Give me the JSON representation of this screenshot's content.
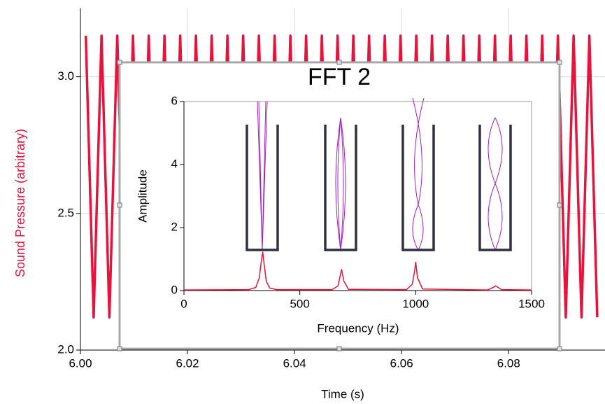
{
  "chart_data": [
    {
      "type": "line",
      "ylabel": "Sound Pressure (arbitrary)",
      "xlabel": "Time (s)",
      "color": "#e8123c",
      "x": [
        6.001,
        6.00247,
        6.00394,
        6.00541,
        6.00688,
        6.00835,
        6.00982,
        6.01129,
        6.01276,
        6.01423,
        6.0157,
        6.01717,
        6.01864,
        6.02011,
        6.02158,
        6.02305,
        6.02452,
        6.02599,
        6.02746,
        6.02893,
        6.0304,
        6.03187,
        6.03334,
        6.03481,
        6.03628,
        6.03775,
        6.03922,
        6.04069,
        6.04216,
        6.04363,
        6.0451,
        6.04657,
        6.04804,
        6.04951,
        6.05098,
        6.05245,
        6.05392,
        6.05539,
        6.05686,
        6.05833,
        6.0598,
        6.06127,
        6.06274,
        6.06421,
        6.06568,
        6.06715,
        6.06862,
        6.07009,
        6.07156,
        6.07303,
        6.0745,
        6.07597,
        6.07744,
        6.07891,
        6.08038,
        6.08185,
        6.08332,
        6.08479,
        6.08626,
        6.08773,
        6.0892,
        6.09067,
        6.09214,
        6.09361,
        6.09508,
        6.09655
      ],
      "values": [
        3.15,
        2.12,
        3.15,
        2.12,
        3.15,
        2.12,
        3.15,
        2.12,
        3.15,
        2.12,
        3.15,
        2.12,
        3.15,
        2.12,
        3.15,
        2.12,
        3.15,
        2.12,
        3.15,
        2.12,
        3.15,
        2.12,
        3.15,
        2.12,
        3.15,
        2.12,
        3.15,
        2.12,
        3.15,
        2.12,
        3.15,
        2.12,
        3.15,
        2.12,
        3.15,
        2.12,
        3.15,
        2.12,
        3.15,
        2.12,
        3.15,
        2.12,
        3.15,
        2.12,
        3.15,
        2.12,
        3.15,
        2.12,
        3.15,
        2.12,
        3.15,
        2.12,
        3.15,
        2.12,
        3.15,
        2.12,
        3.15,
        2.12,
        3.15,
        2.12,
        3.15,
        2.12,
        3.15,
        2.12,
        3.15,
        2.12
      ],
      "xlim": [
        6.0,
        6.098
      ],
      "ylim": [
        2.0,
        3.25
      ],
      "xticks": [
        {
          "value": 6.0,
          "label": "6.00"
        },
        6.02,
        6.04,
        6.06,
        6.08
      ],
      "yticks": [
        {
          "value": 2.0,
          "label": "2.0"
        },
        2.5,
        {
          "value": 3.0,
          "label": "3.0"
        }
      ],
      "grid": true
    },
    {
      "type": "line",
      "title": "FFT 2",
      "xlabel": "Frequency (Hz)",
      "ylabel": "Amplitude",
      "color": "#e8123c",
      "x": [
        0,
        280,
        310,
        325,
        335,
        340,
        345,
        355,
        370,
        400,
        640,
        665,
        675,
        680,
        690,
        710,
        960,
        985,
        995,
        1000,
        1008,
        1030,
        1310,
        1335,
        1345,
        1370,
        1500
      ],
      "values": [
        0.02,
        0.03,
        0.1,
        0.4,
        1.0,
        1.22,
        0.9,
        0.3,
        0.08,
        0.03,
        0.03,
        0.15,
        0.5,
        0.67,
        0.3,
        0.04,
        0.03,
        0.2,
        0.6,
        0.9,
        0.4,
        0.05,
        0.02,
        0.1,
        0.15,
        0.03,
        0.02
      ],
      "xlim": [
        0,
        1500
      ],
      "ylim": [
        0,
        6
      ],
      "xticks": [
        0,
        500,
        1000,
        1500
      ],
      "yticks": [
        0,
        2,
        4,
        6
      ],
      "grid": false
    }
  ]
}
